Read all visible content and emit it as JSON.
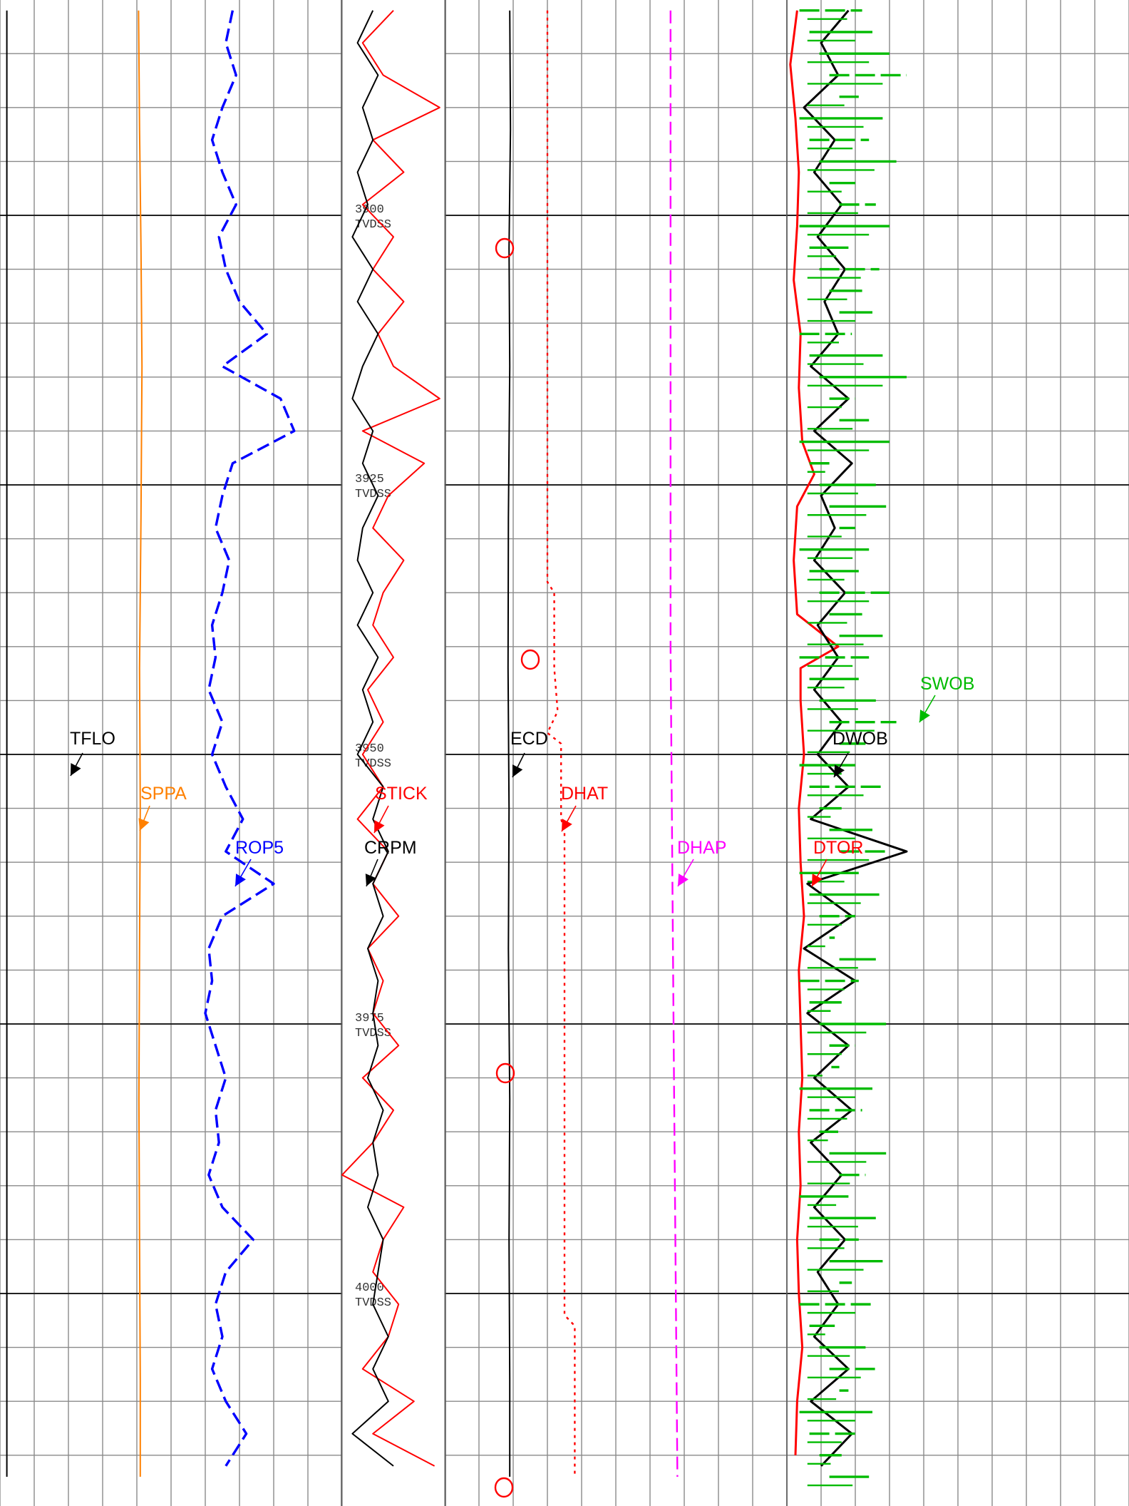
{
  "chart_data": {
    "type": "line",
    "title": "",
    "depth_unit": "TVDSS",
    "depth_range": [
      3881,
      4017
    ],
    "depth_labels": [
      {
        "depth": "3900",
        "unit": "TVDSS"
      },
      {
        "depth": "3925",
        "unit": "TVDSS"
      },
      {
        "depth": "3950",
        "unit": "TVDSS"
      },
      {
        "depth": "3975",
        "unit": "TVDSS"
      },
      {
        "depth": "4000",
        "unit": "TVDSS"
      }
    ],
    "grid": true,
    "tracks": [
      {
        "name": "track-1",
        "grid_divisions": 10
      },
      {
        "name": "track-depth",
        "grid_divisions": 0
      },
      {
        "name": "track-2",
        "grid_divisions": 10
      },
      {
        "name": "track-3",
        "grid_divisions": 10
      }
    ],
    "series": [
      {
        "name": "TFLO",
        "track": "track-1",
        "color": "#000000",
        "style": "solid",
        "depth": [
          3881,
          4017
        ],
        "x": [
          0.2,
          0.2
        ]
      },
      {
        "name": "SPPA",
        "track": "track-1",
        "color": "#ff8000",
        "style": "solid",
        "depth": [
          3881,
          3892,
          3903,
          3914,
          3928,
          3942,
          3955,
          3968,
          3982,
          3995,
          4008,
          4017
        ],
        "x": [
          4.05,
          4.08,
          4.12,
          4.15,
          4.12,
          4.08,
          4.1,
          4.08,
          4.06,
          4.08,
          4.1,
          4.1
        ]
      },
      {
        "name": "ROP5",
        "track": "track-1",
        "color": "#0000ff",
        "style": "dashed",
        "depth": [
          3881,
          3884,
          3887,
          3890,
          3893,
          3896,
          3899,
          3902,
          3905,
          3908,
          3911,
          3914,
          3917,
          3920,
          3923,
          3926,
          3929,
          3932,
          3935,
          3938,
          3941,
          3944,
          3947,
          3950,
          3953,
          3956,
          3959,
          3962,
          3965,
          3968,
          3971,
          3974,
          3977,
          3980,
          3983,
          3986,
          3989,
          3992,
          3995,
          3998,
          4001,
          4004,
          4007,
          4010,
          4013,
          4016
        ],
        "x": [
          6.8,
          6.6,
          6.9,
          6.5,
          6.2,
          6.5,
          6.9,
          6.4,
          6.6,
          7.0,
          7.8,
          6.5,
          8.2,
          8.6,
          6.8,
          6.5,
          6.3,
          6.7,
          6.5,
          6.2,
          6.3,
          6.1,
          6.5,
          6.2,
          6.6,
          7.1,
          6.6,
          8.0,
          6.5,
          6.1,
          6.2,
          6.0,
          6.3,
          6.6,
          6.3,
          6.4,
          6.1,
          6.5,
          7.4,
          6.6,
          6.3,
          6.5,
          6.2,
          6.6,
          7.2,
          6.6
        ]
      },
      {
        "name": "STICK",
        "track": "track-depth",
        "color": "#ff0000",
        "style": "solid",
        "depth": [
          3881,
          3884,
          3887,
          3890,
          3893,
          3896,
          3899,
          3902,
          3905,
          3908,
          3911,
          3914,
          3917,
          3920,
          3923,
          3926,
          3929,
          3932,
          3935,
          3938,
          3941,
          3944,
          3947,
          3950,
          3953,
          3956,
          3959,
          3962,
          3965,
          3968,
          3971,
          3974,
          3977,
          3980,
          3983,
          3986,
          3989,
          3992,
          3995,
          3998,
          4001,
          4004,
          4007,
          4010,
          4013,
          4016
        ],
        "x": [
          0.5,
          0.2,
          0.4,
          0.95,
          0.3,
          0.6,
          0.2,
          0.5,
          0.3,
          0.6,
          0.35,
          0.5,
          0.95,
          0.2,
          0.8,
          0.45,
          0.3,
          0.6,
          0.4,
          0.3,
          0.5,
          0.25,
          0.4,
          0.2,
          0.4,
          0.15,
          0.45,
          0.3,
          0.55,
          0.25,
          0.4,
          0.3,
          0.55,
          0.2,
          0.5,
          0.3,
          0.0,
          0.6,
          0.4,
          0.3,
          0.55,
          0.45,
          0.2,
          0.7,
          0.3,
          0.9
        ]
      },
      {
        "name": "CRPM",
        "track": "track-depth",
        "color": "#000000",
        "style": "solid",
        "depth": [
          3881,
          3884,
          3887,
          3890,
          3893,
          3896,
          3899,
          3902,
          3905,
          3908,
          3911,
          3914,
          3917,
          3920,
          3923,
          3926,
          3929,
          3932,
          3935,
          3938,
          3941,
          3944,
          3947,
          3950,
          3953,
          3956,
          3959,
          3962,
          3965,
          3968,
          3971,
          3974,
          3977,
          3980,
          3983,
          3986,
          3989,
          3992,
          3995,
          3998,
          4001,
          4004,
          4007,
          4010,
          4013,
          4016
        ],
        "x": [
          0.3,
          0.15,
          0.35,
          0.2,
          0.3,
          0.15,
          0.25,
          0.1,
          0.3,
          0.15,
          0.35,
          0.2,
          0.1,
          0.3,
          0.2,
          0.35,
          0.2,
          0.15,
          0.3,
          0.15,
          0.35,
          0.2,
          0.3,
          0.15,
          0.4,
          0.3,
          0.45,
          0.3,
          0.4,
          0.25,
          0.35,
          0.3,
          0.35,
          0.25,
          0.4,
          0.3,
          0.35,
          0.25,
          0.4,
          0.35,
          0.3,
          0.45,
          0.3,
          0.45,
          0.1,
          0.5
        ]
      },
      {
        "name": "ECD",
        "track": "track-2",
        "color": "#000000",
        "style": "solid",
        "depth": [
          3881,
          3892,
          3903,
          3914,
          3928,
          3942,
          3955,
          3968,
          3982,
          3995,
          4008,
          4017
        ],
        "x": [
          1.9,
          1.92,
          1.88,
          1.9,
          1.86,
          1.85,
          1.88,
          1.86,
          1.9,
          1.88,
          1.9,
          1.9
        ]
      },
      {
        "name": "DHAT",
        "track": "track-2",
        "color": "#ff0000",
        "style": "dotted",
        "depth": [
          3881,
          3934,
          3935,
          3942,
          3946,
          3948,
          3949,
          3956,
          3957,
          4002,
          4003,
          4017
        ],
        "x": [
          3.0,
          3.0,
          3.2,
          3.2,
          3.3,
          3.0,
          3.4,
          3.4,
          3.5,
          3.5,
          3.8,
          3.8
        ]
      },
      {
        "name": "DHAP",
        "track": "track-2",
        "color": "#ff00ff",
        "style": "dashed",
        "depth": [
          3881,
          3940,
          3980,
          4017
        ],
        "x": [
          6.6,
          6.6,
          6.7,
          6.8
        ]
      },
      {
        "name": "DTOR",
        "track": "track-3",
        "color": "#ff0000",
        "style": "solid",
        "depth": [
          3881,
          3886,
          3891,
          3896,
          3901,
          3906,
          3911,
          3916,
          3921,
          3924,
          3927,
          3932,
          3937,
          3940,
          3942,
          3945,
          3950,
          3955,
          3960,
          3965,
          3970,
          3975,
          3980,
          3985,
          3990,
          3995,
          4000,
          4005,
          4010,
          4015
        ],
        "x": [
          0.3,
          0.1,
          0.25,
          0.35,
          0.3,
          0.2,
          0.4,
          0.35,
          0.45,
          0.8,
          0.3,
          0.2,
          0.3,
          1.5,
          0.4,
          0.4,
          0.5,
          0.35,
          0.4,
          0.5,
          0.35,
          0.4,
          0.45,
          0.35,
          0.4,
          0.3,
          0.35,
          0.45,
          0.3,
          0.25
        ]
      },
      {
        "name": "DWOB",
        "track": "track-3",
        "color": "#000000",
        "style": "solid",
        "depth": [
          3881,
          3884,
          3887,
          3890,
          3893,
          3896,
          3899,
          3902,
          3905,
          3908,
          3911,
          3914,
          3917,
          3920,
          3923,
          3926,
          3929,
          3932,
          3935,
          3938,
          3941,
          3944,
          3947,
          3950,
          3953,
          3956,
          3959,
          3962,
          3965,
          3968,
          3971,
          3974,
          3977,
          3980,
          3983,
          3986,
          3989,
          3992,
          3995,
          3998,
          4001,
          4004,
          4007,
          4010,
          4013,
          4016
        ],
        "x": [
          1.8,
          1.0,
          1.5,
          0.5,
          1.4,
          0.8,
          1.6,
          0.9,
          1.7,
          1.1,
          1.5,
          0.7,
          1.8,
          0.8,
          1.9,
          1.0,
          1.4,
          0.8,
          1.7,
          0.9,
          1.5,
          0.8,
          1.6,
          0.9,
          1.8,
          0.7,
          3.5,
          0.6,
          1.9,
          0.5,
          2.0,
          0.6,
          1.8,
          0.8,
          1.9,
          0.7,
          1.6,
          0.8,
          1.7,
          0.9,
          1.5,
          0.8,
          1.8,
          0.7,
          1.9,
          1.0
        ]
      },
      {
        "name": "SWOB",
        "track": "track-3",
        "color": "#00bb00",
        "style": "solid",
        "depth": [
          3881,
          3883,
          3885,
          3887,
          3889,
          3891,
          3893,
          3895,
          3897,
          3899,
          3901,
          3903,
          3905,
          3907,
          3909,
          3911,
          3913,
          3915,
          3917,
          3919,
          3921,
          3923,
          3925,
          3927,
          3929,
          3931,
          3933,
          3935,
          3937,
          3939,
          3941,
          3943,
          3945,
          3947,
          3949,
          3951,
          3953,
          3955,
          3957,
          3959,
          3961,
          3963,
          3965,
          3967,
          3969,
          3971,
          3973,
          3975,
          3977,
          3979,
          3981,
          3983,
          3985,
          3987,
          3989,
          3991,
          3993,
          3995,
          3997,
          3999,
          4001,
          4003,
          4005,
          4007,
          4009,
          4011,
          4013,
          4015,
          4017
        ],
        "x": [
          2.2,
          2.5,
          3.0,
          3.5,
          2.1,
          2.8,
          2.4,
          3.2,
          2.0,
          2.6,
          3.0,
          1.8,
          2.7,
          2.2,
          2.5,
          1.9,
          2.8,
          3.5,
          2.0,
          2.4,
          3.0,
          1.4,
          2.6,
          2.9,
          2.0,
          2.4,
          2.1,
          3.0,
          2.2,
          2.8,
          2.4,
          2.1,
          2.6,
          3.2,
          2.3,
          2.0,
          2.8,
          1.6,
          2.5,
          3.0,
          2.1,
          2.7,
          2.0,
          1.4,
          2.6,
          2.1,
          1.6,
          2.9,
          2.0,
          1.3,
          2.5,
          2.2,
          1.5,
          2.9,
          2.3,
          1.8,
          2.6,
          2.1,
          2.8,
          1.9,
          2.5,
          1.4,
          2.3,
          2.7,
          1.8,
          2.5,
          2.0,
          1.6,
          2.4
        ]
      }
    ]
  }
}
